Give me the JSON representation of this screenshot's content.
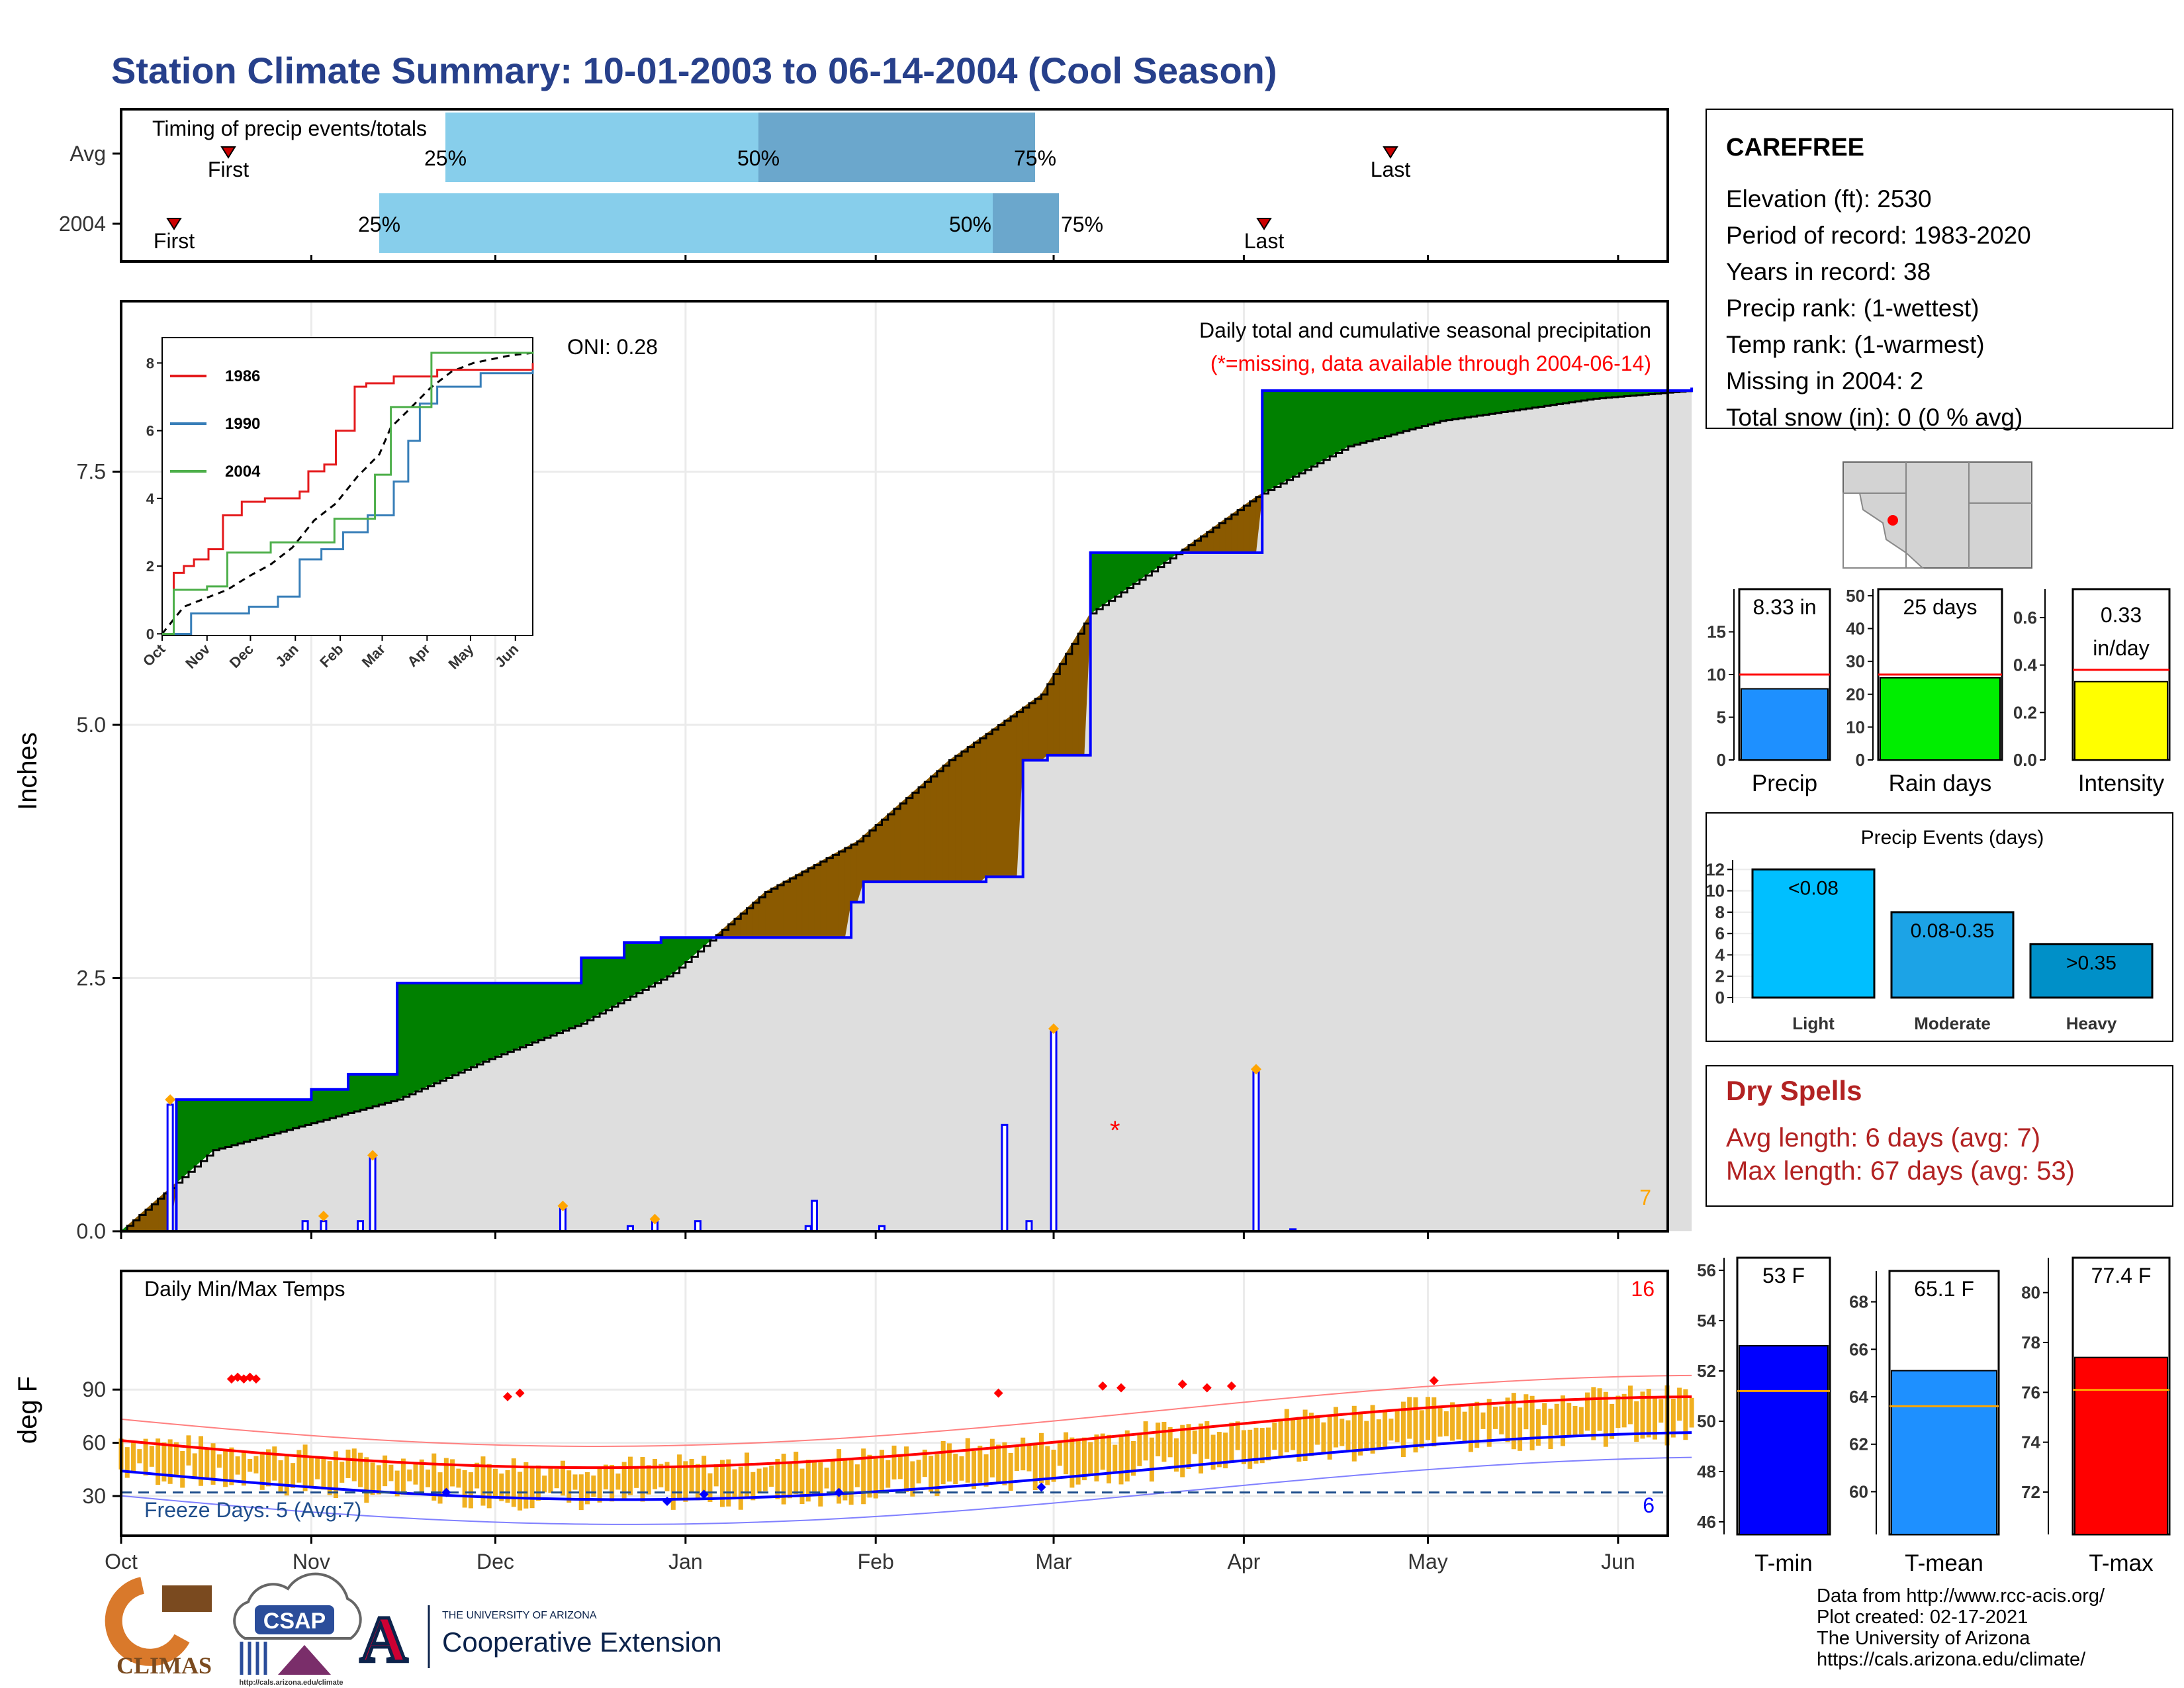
{
  "title": "Station Climate Summary: 10-01-2003 to 06-14-2004 (Cool Season)",
  "colors": {
    "title": "#27408b",
    "avg_fill": "#808080",
    "deficit": "#8b5a00",
    "surplus": "#008000",
    "cum_line": "#0000ff",
    "event": "#ffa500",
    "tmax": "#ff0000",
    "tmin": "#0000ff",
    "bar": "#f0b020",
    "dryspell": "#b22222"
  },
  "timing": {
    "title": "Timing of precip events/totals",
    "rows": [
      "Avg",
      "2004"
    ],
    "first_label": "First",
    "last_label": "Last",
    "pct_labels": [
      "25%",
      "50%",
      "75%"
    ]
  },
  "precip": {
    "ylabel": "Inches",
    "yticks": [
      "0.0",
      "2.5",
      "5.0",
      "7.5"
    ],
    "header": "Daily total and cumulative seasonal precipitation",
    "missing_note": "(*=missing, data available through 2004-06-14)",
    "oni": "ONI: 0.28",
    "corner_count": "7"
  },
  "inset": {
    "yticks": [
      "0",
      "2",
      "4",
      "6",
      "8"
    ],
    "months": [
      "Oct",
      "Nov",
      "Dec",
      "Jan",
      "Feb",
      "Mar",
      "Apr",
      "May",
      "Jun"
    ],
    "legend": [
      "1986",
      "1990",
      "2004"
    ]
  },
  "temps": {
    "label": "Daily Min/Max Temps",
    "ylabel": "deg F",
    "yticks": [
      "30",
      "60",
      "90"
    ],
    "freeze": "Freeze Days: 5 (Avg:7)",
    "hot_count": "16",
    "cold_count": "6"
  },
  "months": [
    "Oct",
    "Nov",
    "Dec",
    "Jan",
    "Feb",
    "Mar",
    "Apr",
    "May",
    "Jun"
  ],
  "station": {
    "name": "CAREFREE",
    "lines": [
      "Elevation (ft): 2530",
      "Period of record: 1983-2020",
      "Years in record: 38",
      "Precip rank:  (1-wettest)",
      "Temp rank:  (1-warmest)",
      "Missing in 2004: 2",
      "Total snow (in): 0 (0 % avg)"
    ]
  },
  "minibars": [
    {
      "label": "Precip",
      "value": 8.33,
      "text": "8.33 in",
      "ref": 10,
      "ymax": 20,
      "ticks": [
        "0",
        "5",
        "10",
        "15"
      ],
      "color": "#1e90ff"
    },
    {
      "label": "Rain days",
      "value": 25,
      "text": "25 days",
      "ref": 26,
      "ymax": 52,
      "ticks": [
        "0",
        "10",
        "20",
        "30",
        "40",
        "50"
      ],
      "color": "#00ee00"
    },
    {
      "label": "Intensity",
      "value": 0.33,
      "text": "0.33 in/day",
      "ref": 0.38,
      "ymax": 0.72,
      "ticks": [
        "0.0",
        "0.2",
        "0.4",
        "0.6"
      ],
      "color": "#ffff00"
    }
  ],
  "events": {
    "title": "Precip Events (days)",
    "categories": [
      "Light",
      "Moderate",
      "Heavy"
    ],
    "labels": [
      "<0.08",
      "0.08-0.35",
      ">0.35"
    ],
    "values": [
      12,
      8,
      5
    ],
    "colors": [
      "#00bfff",
      "#1ca3e6",
      "#0090c8"
    ],
    "yticks": [
      "0",
      "2",
      "4",
      "6",
      "8",
      "10",
      "12"
    ]
  },
  "dryspells": {
    "title": "Dry Spells",
    "lines": [
      "Avg length: 6 days (avg: 7)",
      "Max length: 67 days (avg: 53)"
    ]
  },
  "tempbars": [
    {
      "label": "T-min",
      "value": 53.0,
      "text": "53 F",
      "avg": 51.2,
      "ymin": 45.5,
      "ymax": 56.5,
      "ticks": [
        "46",
        "48",
        "50",
        "52",
        "54",
        "56"
      ],
      "color": "#0000ff"
    },
    {
      "label": "T-mean",
      "value": 65.1,
      "text": "65.1 F",
      "avg": 63.6,
      "ymin": 58.2,
      "ymax": 69.3,
      "ticks": [
        "60",
        "62",
        "64",
        "66",
        "68"
      ],
      "color": "#1e90ff"
    },
    {
      "label": "T-max",
      "value": 77.4,
      "text": "77.4 F",
      "avg": 76.1,
      "ymin": 70.3,
      "ymax": 81.4,
      "ticks": [
        "72",
        "74",
        "76",
        "78",
        "80"
      ],
      "color": "#ff0000"
    }
  ],
  "footer": {
    "lines": [
      "Data from http://www.rcc-acis.org/",
      "Plot created: 02-17-2021",
      "The University of Arizona",
      "https://cals.arizona.edu/climate/"
    ],
    "climas": "CLIMAS",
    "csap": "CSAP",
    "csap_url": "http://cals.arizona.edu/climate",
    "ua_small": "THE UNIVERSITY OF ARIZONA",
    "ua_big": "Cooperative Extension"
  },
  "chart_data": {
    "type": "area",
    "title": "Daily total and cumulative seasonal precipitation",
    "ylabel": "Inches",
    "ylim": [
      0,
      9
    ],
    "x_start": "2003-10-01",
    "cumulative_2004_steps": [
      [
        0,
        0
      ],
      [
        9,
        1.3
      ],
      [
        31,
        1.4
      ],
      [
        37,
        1.55
      ],
      [
        45,
        2.45
      ],
      [
        75,
        2.7
      ],
      [
        82,
        2.85
      ],
      [
        88,
        2.9
      ],
      [
        119,
        3.25
      ],
      [
        121,
        3.45
      ],
      [
        141,
        3.5
      ],
      [
        147,
        4.65
      ],
      [
        151,
        4.7
      ],
      [
        158,
        6.7
      ],
      [
        186,
        8.3
      ],
      [
        256,
        8.33
      ]
    ],
    "cumulative_avg_points": [
      [
        0,
        0
      ],
      [
        15,
        0.8
      ],
      [
        30,
        1.05
      ],
      [
        45,
        1.3
      ],
      [
        60,
        1.7
      ],
      [
        75,
        2.05
      ],
      [
        90,
        2.55
      ],
      [
        105,
        3.35
      ],
      [
        120,
        3.85
      ],
      [
        135,
        4.65
      ],
      [
        150,
        5.3
      ],
      [
        158,
        6.1
      ],
      [
        170,
        6.6
      ],
      [
        185,
        7.25
      ],
      [
        200,
        7.75
      ],
      [
        215,
        8.0
      ],
      [
        240,
        8.22
      ],
      [
        256,
        8.3
      ]
    ],
    "daily_bars": [
      [
        8,
        1.25
      ],
      [
        30,
        0.1
      ],
      [
        33,
        0.1
      ],
      [
        39,
        0.1
      ],
      [
        41,
        0.75
      ],
      [
        72,
        0.25
      ],
      [
        83,
        0.05
      ],
      [
        87,
        0.1
      ],
      [
        94,
        0.1
      ],
      [
        112,
        0.05
      ],
      [
        113,
        0.3
      ],
      [
        124,
        0.05
      ],
      [
        144,
        1.05
      ],
      [
        148,
        0.1
      ],
      [
        152,
        2.0
      ],
      [
        185,
        1.6
      ],
      [
        191,
        0.02
      ]
    ],
    "series": [
      {
        "name": "1986",
        "values": [
          [
            0,
            0
          ],
          [
            8,
            1.8
          ],
          [
            15,
            2.0
          ],
          [
            22,
            2.2
          ],
          [
            32,
            2.5
          ],
          [
            42,
            3.5
          ],
          [
            55,
            3.9
          ],
          [
            71,
            4.0
          ],
          [
            95,
            4.2
          ],
          [
            101,
            4.8
          ],
          [
            112,
            5.0
          ],
          [
            120,
            6.0
          ],
          [
            133,
            7.3
          ],
          [
            141,
            7.4
          ],
          [
            160,
            7.6
          ],
          [
            190,
            7.8
          ],
          [
            240,
            7.8
          ],
          [
            256,
            8.0
          ]
        ]
      },
      {
        "name": "1990",
        "values": [
          [
            0,
            0
          ],
          [
            20,
            0.6
          ],
          [
            60,
            0.8
          ],
          [
            80,
            1.1
          ],
          [
            95,
            2.2
          ],
          [
            110,
            2.5
          ],
          [
            125,
            3.0
          ],
          [
            142,
            3.5
          ],
          [
            160,
            4.5
          ],
          [
            170,
            5.7
          ],
          [
            178,
            6.8
          ],
          [
            190,
            7.3
          ],
          [
            220,
            7.7
          ],
          [
            256,
            7.8
          ]
        ]
      },
      {
        "name": "2004",
        "values": [
          [
            0,
            0
          ],
          [
            8,
            1.3
          ],
          [
            31,
            1.4
          ],
          [
            45,
            2.4
          ],
          [
            75,
            2.7
          ],
          [
            119,
            3.4
          ],
          [
            147,
            4.7
          ],
          [
            158,
            6.7
          ],
          [
            186,
            8.3
          ],
          [
            256,
            8.33
          ]
        ]
      }
    ]
  }
}
